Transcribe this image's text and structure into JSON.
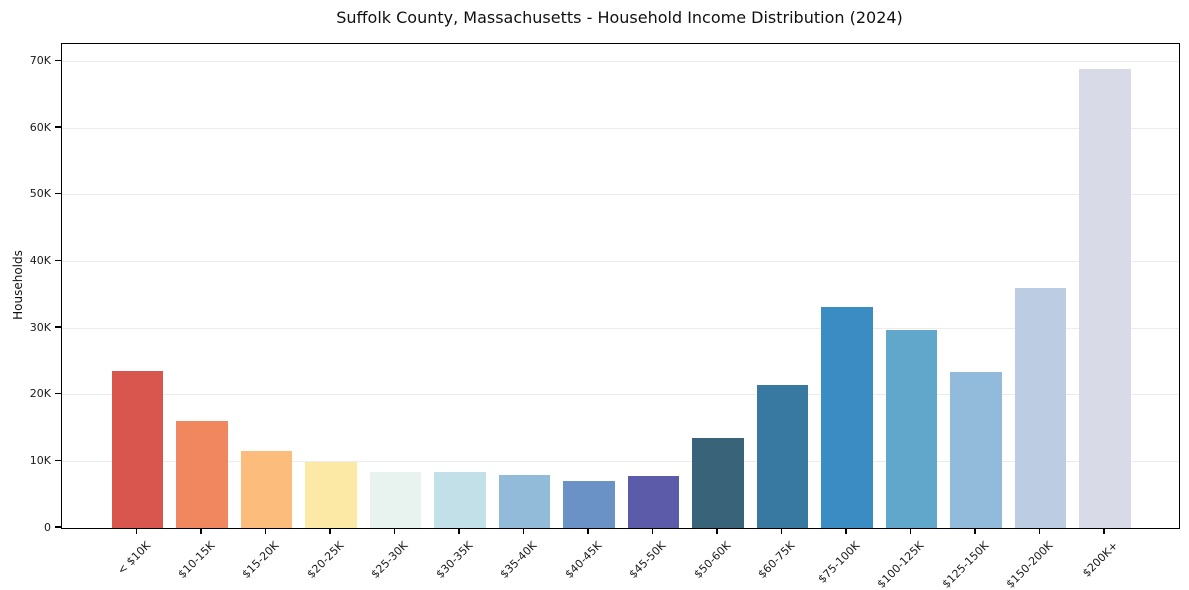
{
  "chart_data": {
    "type": "bar",
    "title": "Suffolk County, Massachusetts - Household Income Distribution (2024)",
    "xlabel": "",
    "ylabel": "Households",
    "categories": [
      "< $10K",
      "$10-15K",
      "$15-20K",
      "$20-25K",
      "$25-30K",
      "$30-35K",
      "$35-40K",
      "$40-45K",
      "$45-50K",
      "$50-60K",
      "$60-75K",
      "$75-100K",
      "$100-125K",
      "$125-150K",
      "$150-200K",
      "$200K+"
    ],
    "values": [
      23600,
      16100,
      11500,
      9900,
      8350,
      8400,
      7900,
      7100,
      7800,
      13550,
      21450,
      33200,
      29750,
      23450,
      36050,
      68800
    ],
    "bar_colors": [
      "#d8564e",
      "#f0875f",
      "#fcbd7c",
      "#fde9a6",
      "#e8f3f0",
      "#c2e0e8",
      "#92bbd9",
      "#6b92c6",
      "#5b5ba9",
      "#396379",
      "#3779a1",
      "#3a8cc3",
      "#61a7cb",
      "#91badb",
      "#bccde3",
      "#d8dae8"
    ],
    "ylim": [
      0,
      72600
    ],
    "yticks": [
      0,
      10000,
      20000,
      30000,
      40000,
      50000,
      60000,
      70000
    ],
    "ytick_labels": [
      "0",
      "10K",
      "20K",
      "30K",
      "40K",
      "50K",
      "60K",
      "70K"
    ],
    "grid": "horizontal-only",
    "gridline_color": "#ececec",
    "spine_color": "#000000",
    "background_color": "#ffffff",
    "legend": "none"
  }
}
